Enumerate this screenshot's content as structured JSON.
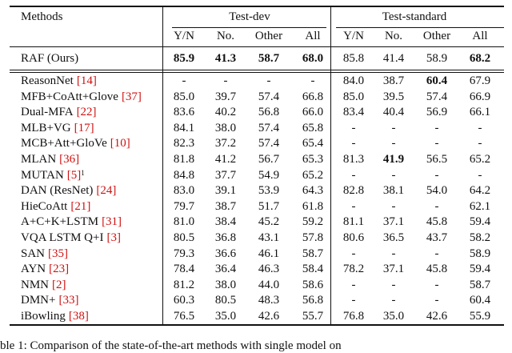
{
  "table": {
    "header": {
      "method": "Methods",
      "groups": [
        "Test-dev",
        "Test-standard"
      ],
      "columns": [
        "Y/N",
        "No.",
        "Other",
        "All",
        "Y/N",
        "No.",
        "Other",
        "All"
      ]
    },
    "ours": {
      "method": {
        "name": "RAF (Ours)"
      },
      "cells": [
        "85.9",
        "41.3",
        "58.7",
        "68.0",
        "85.8",
        "41.4",
        "58.9",
        "68.2"
      ],
      "bold": [
        0,
        1,
        2,
        3,
        7
      ]
    },
    "rows": [
      {
        "method": {
          "name": "ReasonNet",
          "ref": "[14]"
        },
        "cells": [
          "-",
          "-",
          "-",
          "-",
          "84.0",
          "38.7",
          "60.4",
          "67.9"
        ],
        "bold": [
          6
        ]
      },
      {
        "method": {
          "name": "MFB+CoAtt+Glove",
          "ref": "[37]"
        },
        "cells": [
          "85.0",
          "39.7",
          "57.4",
          "66.8",
          "85.0",
          "39.5",
          "57.4",
          "66.9"
        ]
      },
      {
        "method": {
          "name": "Dual-MFA",
          "ref": "[22]"
        },
        "cells": [
          "83.6",
          "40.2",
          "56.8",
          "66.0",
          "83.4",
          "40.4",
          "56.9",
          "66.1"
        ]
      },
      {
        "method": {
          "name": "MLB+VG",
          "ref": "[17]"
        },
        "cells": [
          "84.1",
          "38.0",
          "57.4",
          "65.8",
          "-",
          "-",
          "-",
          "-"
        ]
      },
      {
        "method": {
          "name": "MCB+Att+GloVe",
          "ref": "[10]"
        },
        "cells": [
          "82.3",
          "37.2",
          "57.4",
          "65.4",
          "-",
          "-",
          "-",
          "-"
        ]
      },
      {
        "method": {
          "name": "MLAN",
          "ref": "[36]"
        },
        "cells": [
          "81.8",
          "41.2",
          "56.7",
          "65.3",
          "81.3",
          "41.9",
          "56.5",
          "65.2"
        ],
        "bold": [
          5
        ]
      },
      {
        "method": {
          "name": "MUTAN",
          "ref": "[5]",
          "sup": "1"
        },
        "cells": [
          "84.8",
          "37.7",
          "54.9",
          "65.2",
          "-",
          "-",
          "-",
          "-"
        ]
      },
      {
        "method": {
          "name": "DAN (ResNet)",
          "ref": "[24]"
        },
        "cells": [
          "83.0",
          "39.1",
          "53.9",
          "64.3",
          "82.8",
          "38.1",
          "54.0",
          "64.2"
        ]
      },
      {
        "method": {
          "name": "HieCoAtt",
          "ref": "[21]"
        },
        "cells": [
          "79.7",
          "38.7",
          "51.7",
          "61.8",
          "-",
          "-",
          "-",
          "62.1"
        ]
      },
      {
        "method": {
          "name": "A+C+K+LSTM",
          "ref": "[31]"
        },
        "cells": [
          "81.0",
          "38.4",
          "45.2",
          "59.2",
          "81.1",
          "37.1",
          "45.8",
          "59.4"
        ]
      },
      {
        "method": {
          "name": "VQA LSTM Q+I",
          "ref": "[3]"
        },
        "cells": [
          "80.5",
          "36.8",
          "43.1",
          "57.8",
          "80.6",
          "36.5",
          "43.7",
          "58.2"
        ]
      },
      {
        "method": {
          "name": "SAN",
          "ref": "[35]"
        },
        "cells": [
          "79.3",
          "36.6",
          "46.1",
          "58.7",
          "-",
          "-",
          "-",
          "58.9"
        ]
      },
      {
        "method": {
          "name": "AYN",
          "ref": "[23]"
        },
        "cells": [
          "78.4",
          "36.4",
          "46.3",
          "58.4",
          "78.2",
          "37.1",
          "45.8",
          "59.4"
        ]
      },
      {
        "method": {
          "name": "NMN",
          "ref": "[2]"
        },
        "cells": [
          "81.2",
          "38.0",
          "44.0",
          "58.6",
          "-",
          "-",
          "-",
          "58.7"
        ]
      },
      {
        "method": {
          "name": "DMN+",
          "ref": "[33]"
        },
        "cells": [
          "60.3",
          "80.5",
          "48.3",
          "56.8",
          "-",
          "-",
          "-",
          "60.4"
        ]
      },
      {
        "method": {
          "name": "iBowling",
          "ref": "[38]"
        },
        "cells": [
          "76.5",
          "35.0",
          "42.6",
          "55.7",
          "76.8",
          "35.0",
          "42.6",
          "55.9"
        ]
      }
    ],
    "caption": "ble 1: Comparison of the state-of-the-art methods with single model on"
  }
}
